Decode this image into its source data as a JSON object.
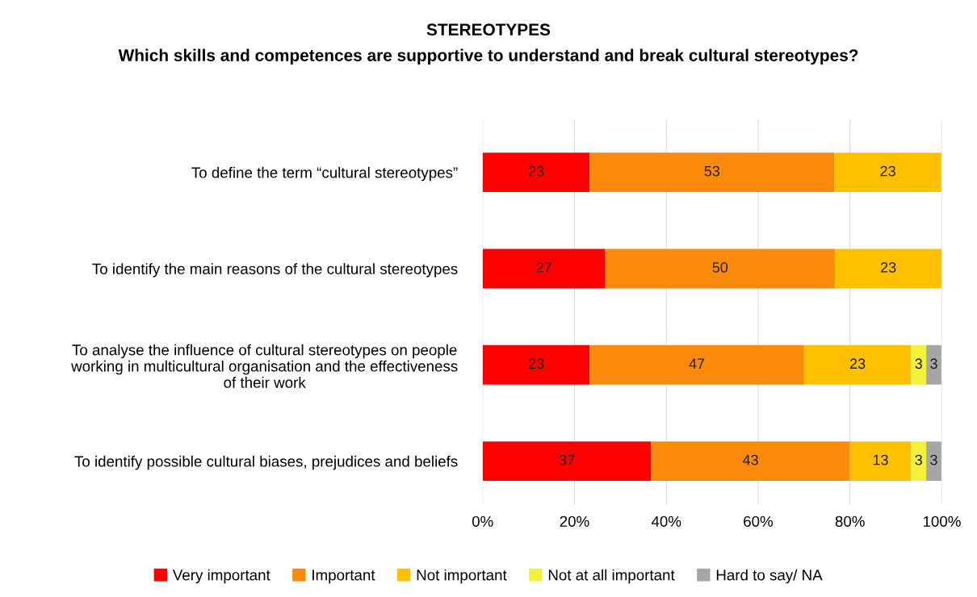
{
  "chart_data": {
    "type": "bar",
    "orientation": "horizontal",
    "stacked": true,
    "title": "STEREOTYPES",
    "subtitle": "Which skills and competences are supportive to understand and break cultural stereotypes?",
    "categories": [
      "To define the term “cultural stereotypes”",
      "To identify the main reasons of the cultural stereotypes",
      "To analyse the influence of cultural stereotypes on people\nworking in multicultural organisation and the effectiveness\nof their work",
      "To identify possible cultural biases, prejudices and beliefs"
    ],
    "series": [
      {
        "name": "Very important",
        "color": "#ff0000",
        "values": [
          23.3,
          26.7,
          23.3,
          36.7
        ],
        "value_labels": [
          "23",
          "27",
          "23",
          "37"
        ]
      },
      {
        "name": "Important",
        "color": "#fa8a0c",
        "values": [
          53.3,
          50,
          46.7,
          43.3
        ],
        "value_labels": [
          "53",
          "50",
          "47",
          "43"
        ]
      },
      {
        "name": "Not important",
        "color": "#ffc000",
        "values": [
          23.3,
          23.3,
          23.3,
          13.3
        ],
        "value_labels": [
          "23",
          "23",
          "23",
          "13"
        ]
      },
      {
        "name": "Not at all important",
        "color": "#f2f23c",
        "values": [
          null,
          null,
          3.3,
          3.3
        ],
        "value_labels": [
          null,
          null,
          "3",
          "3"
        ]
      },
      {
        "name": "Hard to say/ NA",
        "color": "#a6a6a6",
        "values": [
          null,
          null,
          3.3,
          3.3
        ],
        "value_labels": [
          null,
          null,
          "3",
          "3"
        ]
      }
    ],
    "xlim": [
      0,
      100
    ],
    "xticks": [
      {
        "value": 0,
        "label": "0%"
      },
      {
        "value": 20,
        "label": "20%"
      },
      {
        "value": 40,
        "label": "40%"
      },
      {
        "value": 60,
        "label": "60%"
      },
      {
        "value": 80,
        "label": "80%"
      },
      {
        "value": 100,
        "label": "100%"
      }
    ],
    "grid": "x",
    "legend": "bottom"
  }
}
